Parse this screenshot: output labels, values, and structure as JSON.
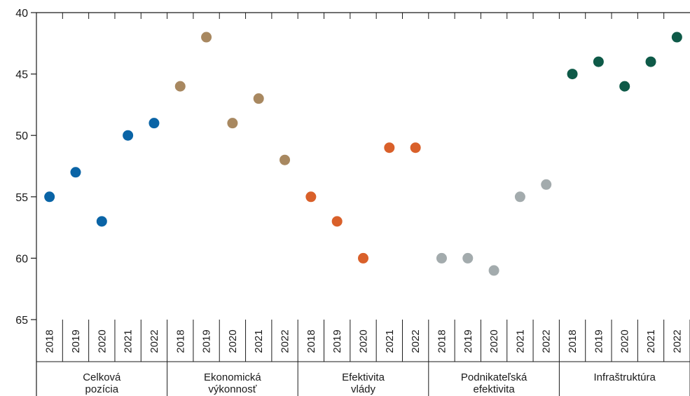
{
  "chart_data": {
    "type": "scatter",
    "y_axis": {
      "reversed": true,
      "ylim": [
        40,
        65
      ],
      "ticks": [
        40,
        45,
        50,
        55,
        60,
        65
      ]
    },
    "years": [
      "2018",
      "2019",
      "2020",
      "2021",
      "2022"
    ],
    "groups": [
      {
        "label_lines": [
          "Celková",
          "pozícia"
        ],
        "color": "#0a64a6",
        "values": [
          55,
          53,
          57,
          50,
          49
        ]
      },
      {
        "label_lines": [
          "Ekonomická",
          "výkonnosť"
        ],
        "color": "#a88860",
        "values": [
          46,
          42,
          49,
          47,
          52
        ]
      },
      {
        "label_lines": [
          "Efektivita",
          "vlády"
        ],
        "color": "#d9602a",
        "values": [
          55,
          57,
          60,
          51,
          51
        ]
      },
      {
        "label_lines": [
          "Podnikateľská",
          "efektivita"
        ],
        "color": "#a3abad",
        "values": [
          60,
          60,
          61,
          55,
          54
        ]
      },
      {
        "label_lines": [
          "Infraštruktúra"
        ],
        "color": "#0e5a48",
        "values": [
          45,
          44,
          46,
          44,
          42
        ]
      }
    ],
    "legend": "none",
    "grid": false
  }
}
